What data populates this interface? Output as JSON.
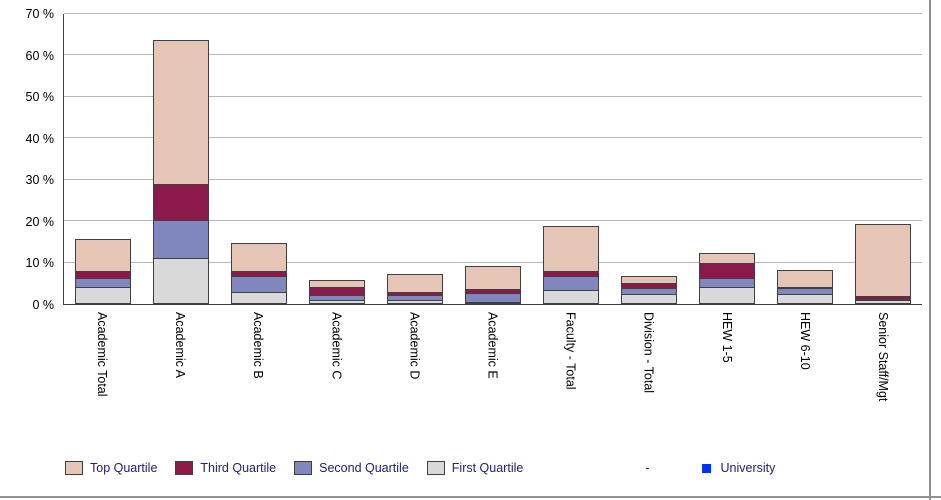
{
  "page": {
    "background": "#FFFFFF"
  },
  "chart_data": {
    "type": "bar",
    "stacked": true,
    "title": "",
    "xlabel": "",
    "ylabel": "",
    "categories": [
      "Academic Total",
      "Academic A",
      "Academic B",
      "Academic C",
      "Academic D",
      "Academic E",
      "Faculty - Total",
      "Division - Total",
      "HEW 1-5",
      "HEW 6-10",
      "Senior Staff/Mgt"
    ],
    "series": [
      {
        "name": "First Quartile",
        "color": "#D9D9D9",
        "values": [
          4,
          11,
          3,
          1,
          1,
          0.5,
          3.5,
          2.5,
          4,
          2.5,
          1
        ]
      },
      {
        "name": "Second Quartile",
        "color": "#7F87BE",
        "values": [
          2.5,
          9.5,
          4,
          1.5,
          1.5,
          2.5,
          3.5,
          1.5,
          2.5,
          1.5,
          0.5
        ]
      },
      {
        "name": "Third Quartile",
        "color": "#8B1A4A",
        "values": [
          2,
          9,
          1.5,
          2,
          1,
          1,
          1.5,
          1.5,
          4,
          0.5,
          1
        ]
      },
      {
        "name": "Top Quartile",
        "color": "#E5C5B5",
        "values": [
          8,
          35,
          7,
          2,
          4.5,
          6,
          11,
          2,
          2.5,
          4.5,
          17.5
        ]
      }
    ],
    "totals": [
      16.5,
      64.5,
      15.5,
      6.5,
      8,
      10,
      19.5,
      7.5,
      13,
      9,
      20
    ],
    "ylim": [
      0,
      70
    ],
    "ytick_step": 10,
    "ytick_suffix": " %",
    "grid": true,
    "legend_position": "bottom",
    "legend_items": [
      {
        "label": "Top Quartile",
        "swatch": "large",
        "color": "#E5C5B5"
      },
      {
        "label": "Third Quartile",
        "swatch": "large",
        "color": "#8B1A4A"
      },
      {
        "label": "Second Quartile",
        "swatch": "large",
        "color": "#7F87BE"
      },
      {
        "label": "First Quartile",
        "swatch": "large",
        "color": "#D9D9D9"
      },
      {
        "label": "-",
        "swatch": "none",
        "color": ""
      },
      {
        "label": "University",
        "swatch": "small",
        "color": "#0033FF"
      }
    ]
  }
}
